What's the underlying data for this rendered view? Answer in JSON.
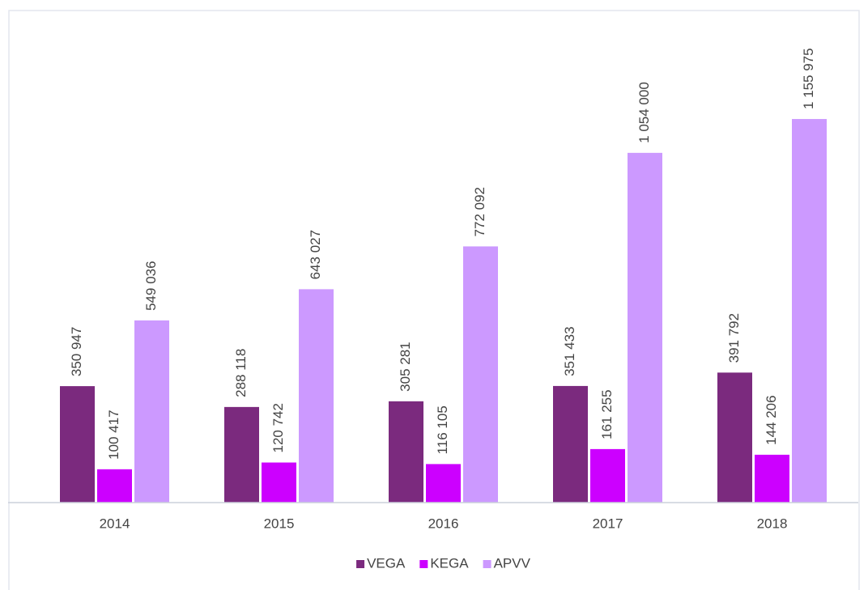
{
  "chart_data": {
    "type": "bar",
    "categories": [
      "2014",
      "2015",
      "2016",
      "2017",
      "2018"
    ],
    "series": [
      {
        "name": "VEGA",
        "color": "#7b2a7e",
        "values": [
          350947,
          288118,
          305281,
          351433,
          391792
        ],
        "value_labels": [
          "350 947",
          "288 118",
          "305 281",
          "351 433",
          "391 792"
        ]
      },
      {
        "name": "KEGA",
        "color": "#cc00ff",
        "values": [
          100417,
          120742,
          116105,
          161255,
          144206
        ],
        "value_labels": [
          "100 417",
          "120 742",
          "116 105",
          "161 255",
          "144 206"
        ]
      },
      {
        "name": "APVV",
        "color": "#cc99ff",
        "values": [
          549036,
          643027,
          772092,
          1054000,
          1155975
        ],
        "value_labels": [
          "549 036",
          "643 027",
          "772 092",
          "1 054 000",
          "1 155 975"
        ]
      }
    ],
    "ylim": [
      0,
      1400000
    ],
    "legend": "bottom"
  }
}
